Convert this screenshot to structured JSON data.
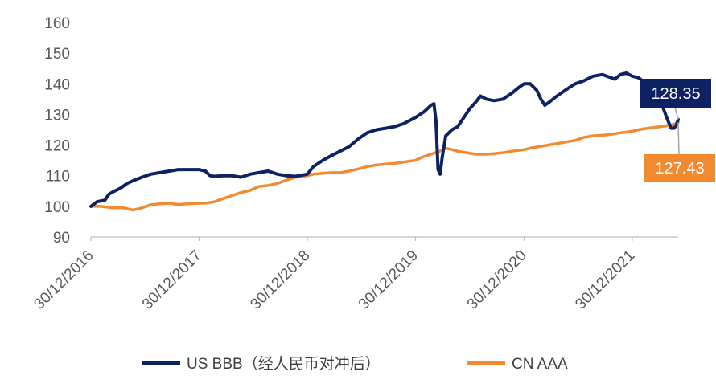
{
  "chart_data": {
    "type": "line",
    "title": "",
    "xlabel": "",
    "ylabel": "",
    "ylim": [
      90,
      160
    ],
    "yticks": [
      90,
      100,
      110,
      120,
      130,
      140,
      150,
      160
    ],
    "xlim": [
      "2016-12-30",
      "2022-06-03"
    ],
    "xticks": [
      "30/12/2016",
      "30/12/2017",
      "30/12/2018",
      "30/12/2019",
      "30/12/2020",
      "30/12/2021"
    ],
    "grid": false,
    "legend_position": "bottom",
    "series": [
      {
        "name": "US BBB（经人民币对冲后）",
        "color": "#0d2163",
        "last_label": "128.35",
        "points": [
          [
            "2016-12-30",
            100
          ],
          [
            "2017-01-20",
            101.5
          ],
          [
            "2017-02-15",
            102
          ],
          [
            "2017-03-01",
            104
          ],
          [
            "2017-03-20",
            105
          ],
          [
            "2017-04-10",
            106
          ],
          [
            "2017-05-01",
            107.5
          ],
          [
            "2017-05-25",
            108.5
          ],
          [
            "2017-06-20",
            109.5
          ],
          [
            "2017-07-20",
            110.5
          ],
          [
            "2017-08-20",
            111
          ],
          [
            "2017-09-20",
            111.5
          ],
          [
            "2017-10-20",
            112
          ],
          [
            "2017-11-20",
            112
          ],
          [
            "2017-12-30",
            112
          ],
          [
            "2018-01-20",
            111.5
          ],
          [
            "2018-02-05",
            110
          ],
          [
            "2018-02-20",
            109.8
          ],
          [
            "2018-03-20",
            110
          ],
          [
            "2018-04-20",
            110
          ],
          [
            "2018-05-20",
            109.5
          ],
          [
            "2018-06-20",
            110.5
          ],
          [
            "2018-07-20",
            111
          ],
          [
            "2018-08-20",
            111.5
          ],
          [
            "2018-09-20",
            110.5
          ],
          [
            "2018-10-20",
            110
          ],
          [
            "2018-11-20",
            109.8
          ],
          [
            "2018-12-30",
            110.5
          ],
          [
            "2019-01-20",
            113
          ],
          [
            "2019-02-20",
            115
          ],
          [
            "2019-03-20",
            116.5
          ],
          [
            "2019-04-20",
            118
          ],
          [
            "2019-05-20",
            119.5
          ],
          [
            "2019-06-20",
            122
          ],
          [
            "2019-07-20",
            124
          ],
          [
            "2019-08-20",
            125
          ],
          [
            "2019-09-20",
            125.5
          ],
          [
            "2019-10-20",
            126
          ],
          [
            "2019-11-20",
            127
          ],
          [
            "2019-12-30",
            129
          ],
          [
            "2020-01-30",
            131
          ],
          [
            "2020-02-20",
            133
          ],
          [
            "2020-03-01",
            133.5
          ],
          [
            "2020-03-08",
            128
          ],
          [
            "2020-03-15",
            112
          ],
          [
            "2020-03-22",
            110.5
          ],
          [
            "2020-03-29",
            116
          ],
          [
            "2020-04-10",
            123
          ],
          [
            "2020-05-01",
            125
          ],
          [
            "2020-05-20",
            126
          ],
          [
            "2020-06-10",
            129
          ],
          [
            "2020-07-01",
            132
          ],
          [
            "2020-07-20",
            134
          ],
          [
            "2020-08-05",
            136
          ],
          [
            "2020-08-25",
            135
          ],
          [
            "2020-09-20",
            134.5
          ],
          [
            "2020-10-20",
            135
          ],
          [
            "2020-11-20",
            137
          ],
          [
            "2020-12-15",
            139
          ],
          [
            "2020-12-30",
            140
          ],
          [
            "2021-01-20",
            140
          ],
          [
            "2021-02-10",
            138
          ],
          [
            "2021-02-25",
            135
          ],
          [
            "2021-03-10",
            133
          ],
          [
            "2021-03-25",
            134
          ],
          [
            "2021-04-20",
            136
          ],
          [
            "2021-05-20",
            138
          ],
          [
            "2021-06-20",
            140
          ],
          [
            "2021-07-20",
            141
          ],
          [
            "2021-08-20",
            142.5
          ],
          [
            "2021-09-20",
            143
          ],
          [
            "2021-10-20",
            142
          ],
          [
            "2021-11-01",
            141.5
          ],
          [
            "2021-11-20",
            143
          ],
          [
            "2021-12-10",
            143.5
          ],
          [
            "2021-12-30",
            142.5
          ],
          [
            "2022-01-20",
            142
          ],
          [
            "2022-02-10",
            140.5
          ],
          [
            "2022-03-01",
            138
          ],
          [
            "2022-03-20",
            136
          ],
          [
            "2022-04-10",
            133
          ],
          [
            "2022-04-25",
            129
          ],
          [
            "2022-05-10",
            125.5
          ],
          [
            "2022-05-20",
            125.5
          ],
          [
            "2022-05-28",
            126.5
          ],
          [
            "2022-06-03",
            128.35
          ]
        ]
      },
      {
        "name": "CN AAA",
        "color": "#f28b30",
        "last_label": "127.43",
        "points": [
          [
            "2016-12-30",
            100
          ],
          [
            "2017-02-01",
            100
          ],
          [
            "2017-03-15",
            99.5
          ],
          [
            "2017-04-20",
            99.5
          ],
          [
            "2017-05-20",
            98.8
          ],
          [
            "2017-06-20",
            99.5
          ],
          [
            "2017-07-20",
            100.5
          ],
          [
            "2017-08-20",
            100.8
          ],
          [
            "2017-09-20",
            101
          ],
          [
            "2017-10-20",
            100.6
          ],
          [
            "2017-11-20",
            100.8
          ],
          [
            "2017-12-30",
            101
          ],
          [
            "2018-01-20",
            101
          ],
          [
            "2018-02-20",
            101.5
          ],
          [
            "2018-03-20",
            102.5
          ],
          [
            "2018-04-20",
            103.5
          ],
          [
            "2018-05-20",
            104.5
          ],
          [
            "2018-06-20",
            105.2
          ],
          [
            "2018-07-20",
            106.5
          ],
          [
            "2018-08-20",
            106.8
          ],
          [
            "2018-09-20",
            107.5
          ],
          [
            "2018-10-20",
            108.5
          ],
          [
            "2018-11-20",
            109.5
          ],
          [
            "2018-12-30",
            110
          ],
          [
            "2019-01-20",
            110.5
          ],
          [
            "2019-02-20",
            110.8
          ],
          [
            "2019-03-20",
            111
          ],
          [
            "2019-04-20",
            111
          ],
          [
            "2019-05-20",
            111.5
          ],
          [
            "2019-06-20",
            112.2
          ],
          [
            "2019-07-20",
            113
          ],
          [
            "2019-08-20",
            113.5
          ],
          [
            "2019-09-20",
            113.8
          ],
          [
            "2019-10-20",
            114
          ],
          [
            "2019-11-20",
            114.5
          ],
          [
            "2019-12-30",
            115
          ],
          [
            "2020-01-20",
            116
          ],
          [
            "2020-02-20",
            117
          ],
          [
            "2020-03-20",
            118
          ],
          [
            "2020-04-10",
            119
          ],
          [
            "2020-05-01",
            118.5
          ],
          [
            "2020-05-20",
            118
          ],
          [
            "2020-06-20",
            117.5
          ],
          [
            "2020-07-20",
            117
          ],
          [
            "2020-08-20",
            117
          ],
          [
            "2020-09-20",
            117.2
          ],
          [
            "2020-10-20",
            117.5
          ],
          [
            "2020-11-20",
            118
          ],
          [
            "2020-12-30",
            118.5
          ],
          [
            "2021-01-20",
            119
          ],
          [
            "2021-02-20",
            119.5
          ],
          [
            "2021-03-20",
            120
          ],
          [
            "2021-04-20",
            120.5
          ],
          [
            "2021-05-20",
            121
          ],
          [
            "2021-06-20",
            121.5
          ],
          [
            "2021-07-20",
            122.5
          ],
          [
            "2021-08-20",
            123
          ],
          [
            "2021-09-20",
            123.2
          ],
          [
            "2021-10-20",
            123.5
          ],
          [
            "2021-11-20",
            124
          ],
          [
            "2021-12-30",
            124.5
          ],
          [
            "2022-01-20",
            125
          ],
          [
            "2022-02-20",
            125.5
          ],
          [
            "2022-03-20",
            125.8
          ],
          [
            "2022-04-20",
            126.2
          ],
          [
            "2022-05-20",
            126.8
          ],
          [
            "2022-06-03",
            127.43
          ]
        ]
      }
    ]
  }
}
